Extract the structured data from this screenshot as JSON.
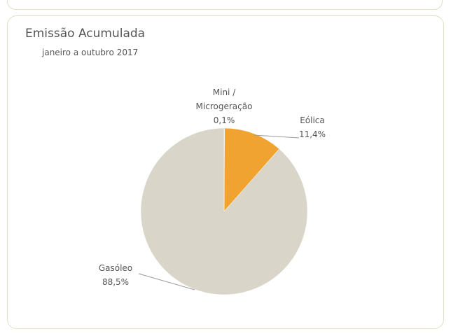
{
  "chart_data": {
    "type": "pie",
    "title": "Emissão Acumulada",
    "subtitle": "janeiro a outubro 2017",
    "categories": [
      "Mini / Microgeração",
      "Eólica",
      "Gasóleo"
    ],
    "values": [
      0.1,
      11.4,
      88.5
    ],
    "value_labels": [
      "0,1%",
      "11,4%",
      "88,5%"
    ],
    "colors": [
      "#8c8c8c",
      "#f0a330",
      "#d9d6c9"
    ]
  }
}
